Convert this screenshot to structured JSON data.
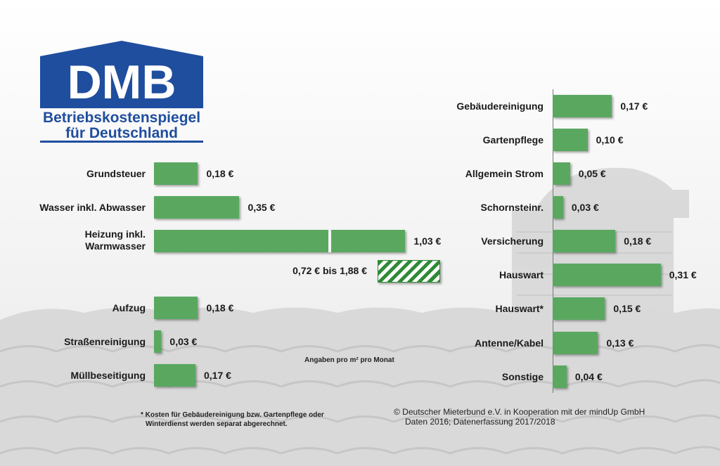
{
  "logo": {
    "acronym": "DMB",
    "line1": "Betriebskostenspiegel",
    "line2": "für Deutschland",
    "color": "#1f4e9e"
  },
  "colors": {
    "bar": "#5aa860",
    "hatch": "#2f8a36"
  },
  "chart_data": [
    {
      "type": "bar",
      "orientation": "horizontal",
      "unit": "€",
      "categories": [
        "Grundsteuer",
        "Wasser inkl. Abwasser",
        "Heizung inkl. Warmwasser",
        "Aufzug",
        "Straßenreinigung",
        "Müllbeseitigung"
      ],
      "values": [
        0.18,
        0.35,
        1.03,
        0.18,
        0.03,
        0.17
      ],
      "value_labels": [
        "0,18 €",
        "0,35 €",
        "1,03 €",
        "0,18 €",
        "0,03 €",
        "0,17 €"
      ],
      "range": {
        "category": "Heizung inkl. Warmwasser",
        "min": 0.72,
        "max": 1.88,
        "label": "0,72 € bis 1,88 €"
      }
    },
    {
      "type": "bar",
      "orientation": "horizontal",
      "unit": "€",
      "categories": [
        "Gebäudereinigung",
        "Gartenpflege",
        "Allgemein Strom",
        "Schornsteinr.",
        "Versicherung",
        "Hauswart",
        "Hauswart*",
        "Antenne/Kabel",
        "Sonstige"
      ],
      "values": [
        0.17,
        0.1,
        0.05,
        0.03,
        0.18,
        0.31,
        0.15,
        0.13,
        0.04
      ],
      "value_labels": [
        "0,17 €",
        "0,10 €",
        "0,05 €",
        "0,03 €",
        "0,18 €",
        "0,31 €",
        "0,15 €",
        "0,13 €",
        "0,04 €"
      ]
    }
  ],
  "unit_note": "Angaben pro m² pro Monat",
  "footnote": {
    "line1": "* Kosten für Gebäudereinigung bzw. Gartenpflege oder",
    "line2": "Winterdienst werden separat abgerechnet."
  },
  "source": {
    "line1": "© Deutscher Mieterbund e.V. in Kooperation mit der mindUp GmbH",
    "line2": "Daten 2016; Datenerfassung 2017/2018"
  }
}
